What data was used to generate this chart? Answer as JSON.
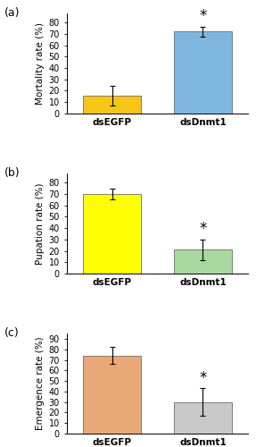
{
  "panels": [
    {
      "label": "(a)",
      "ylabel": "Mortality rate (%)",
      "categories": [
        "dsEGFP",
        "dsDnmt1"
      ],
      "values": [
        15.5,
        72.0
      ],
      "errors": [
        8.5,
        4.5
      ],
      "colors": [
        "#F5C518",
        "#7EB6E0"
      ],
      "sig": [
        false,
        true
      ],
      "ylim": [
        0,
        88
      ],
      "yticks": [
        0,
        10,
        20,
        30,
        40,
        50,
        60,
        70,
        80
      ]
    },
    {
      "label": "(b)",
      "ylabel": "Pupation rate (%)",
      "categories": [
        "dsEGFP",
        "dsDnmt1"
      ],
      "values": [
        70.0,
        21.0
      ],
      "errors": [
        5.0,
        9.0
      ],
      "colors": [
        "#FFFF00",
        "#A8D8A0"
      ],
      "sig": [
        false,
        true
      ],
      "ylim": [
        0,
        88
      ],
      "yticks": [
        0,
        10,
        20,
        30,
        40,
        50,
        60,
        70,
        80
      ]
    },
    {
      "label": "(c)",
      "ylabel": "Emergence rate (%)",
      "categories": [
        "dsEGFP",
        "dsDnmt1"
      ],
      "values": [
        74.0,
        30.0
      ],
      "errors": [
        8.0,
        13.0
      ],
      "colors": [
        "#E8A878",
        "#C8C8C8"
      ],
      "sig": [
        false,
        true
      ],
      "ylim": [
        0,
        95
      ],
      "yticks": [
        0,
        10,
        20,
        30,
        40,
        50,
        60,
        70,
        80,
        90
      ]
    }
  ],
  "bar_width": 0.38,
  "label_fontsize": 7.5,
  "tick_fontsize": 7.0,
  "panel_label_fontsize": 9,
  "star_fontsize": 12,
  "xticklabel_fontsize": 7.5
}
